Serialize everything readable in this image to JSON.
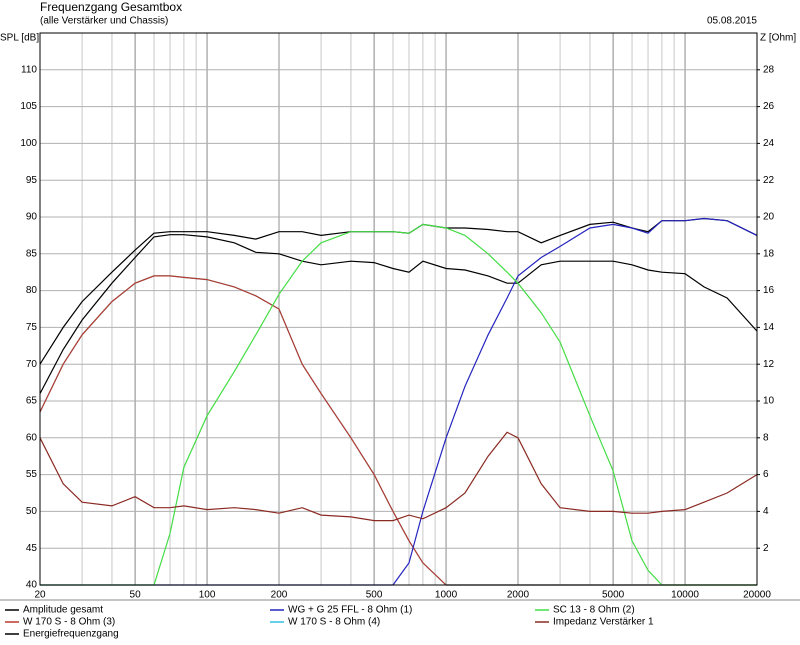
{
  "chart_data": {
    "type": "line",
    "title": "Frequenzgang Gesamtbox",
    "subtitle": "(alle Verstärker und Chassis)",
    "date": "05.08.2015",
    "y_label": "SPL [dB]",
    "y2_label": "Z [Ohm]",
    "log_x": true,
    "grid": true,
    "x": [
      20,
      25,
      30,
      40,
      50,
      60,
      70,
      80,
      100,
      130,
      160,
      200,
      250,
      300,
      400,
      500,
      600,
      700,
      800,
      1000,
      1200,
      1500,
      1800,
      2000,
      2500,
      3000,
      4000,
      5000,
      6000,
      7000,
      8000,
      10000,
      12000,
      15000,
      20000
    ],
    "xlim": [
      20,
      20000
    ],
    "xticks": [
      20,
      50,
      100,
      200,
      500,
      1000,
      2000,
      5000,
      10000,
      20000
    ],
    "ylim": [
      40,
      115
    ],
    "yticks": [
      40,
      45,
      50,
      55,
      60,
      65,
      70,
      75,
      80,
      85,
      90,
      95,
      100,
      105,
      110
    ],
    "y2lim": [
      0,
      30
    ],
    "y2ticks": [
      2,
      4,
      6,
      8,
      10,
      12,
      14,
      16,
      18,
      20,
      22,
      24,
      26,
      28
    ],
    "series": [
      {
        "name": "Amplitude gesamt",
        "color": "#000000",
        "values": [
          70,
          75,
          78.5,
          82.5,
          85.5,
          87.8,
          88,
          88,
          88,
          87.5,
          87,
          88,
          88,
          87.5,
          88,
          88,
          88,
          87.8,
          89,
          88.5,
          88.5,
          88.3,
          88,
          88,
          86.5,
          87.5,
          89,
          89.3,
          88.5,
          88,
          89.5,
          89.5,
          89.8,
          89.5,
          87.5
        ]
      },
      {
        "name": "W 170 S - 8 Ohm (3)",
        "color": "#b83a2e",
        "values": [
          63.5,
          70,
          74,
          78.5,
          81,
          82,
          82,
          81.8,
          81.5,
          80.5,
          79.3,
          77.5,
          70,
          66,
          60,
          55,
          50,
          46,
          43,
          40,
          40,
          40,
          40,
          40,
          40,
          40,
          40,
          40,
          40,
          40,
          40,
          40,
          40,
          40,
          40
        ]
      },
      {
        "name": "Energiefrequenzgang",
        "color": "#000000",
        "values": [
          66,
          72,
          76,
          81,
          84.5,
          87.3,
          87.6,
          87.6,
          87.3,
          86.5,
          85.2,
          85,
          84,
          83.5,
          84,
          83.8,
          83,
          82.5,
          84,
          83,
          82.8,
          82,
          81,
          81,
          83.5,
          84,
          84,
          84,
          83.5,
          82.8,
          82.5,
          82.3,
          80.5,
          79,
          74.5
        ]
      },
      {
        "name": "WG + G 25 FFL - 8 Ohm (1)",
        "color": "#2424c0",
        "values": [
          40,
          40,
          40,
          40,
          40,
          40,
          40,
          40,
          40,
          40,
          40,
          40,
          40,
          40,
          40,
          40,
          40,
          43,
          50,
          60,
          67,
          74,
          79,
          82,
          84.5,
          86,
          88.5,
          89,
          88.5,
          87.8,
          89.5,
          89.5,
          89.8,
          89.5,
          87.5
        ]
      },
      {
        "name": "W 170 S - 8 Ohm (4)",
        "color": "#33c0e0",
        "values": [
          63.5,
          70,
          74,
          78.5,
          81,
          82,
          82,
          81.8,
          81.5,
          80.5,
          79.3,
          77.5,
          70,
          66,
          60,
          55,
          50,
          46,
          43,
          40,
          40,
          40,
          40,
          40,
          40,
          40,
          40,
          40,
          40,
          40,
          40,
          40,
          40,
          40,
          40
        ]
      },
      {
        "name": "SC 13 - 8 Ohm (2)",
        "color": "#44dd44",
        "values": [
          40,
          40,
          40,
          40,
          40,
          40,
          47,
          56,
          63,
          69,
          74,
          79.5,
          84,
          86.5,
          88,
          88,
          88,
          87.8,
          89,
          88.5,
          87.5,
          85,
          82.5,
          81,
          77,
          73,
          63,
          55.5,
          46,
          42,
          40,
          40,
          40,
          40,
          40
        ]
      },
      {
        "name": "Impedanz Verstärker 1",
        "color": "#8b2a22",
        "axis": "y2",
        "values": [
          8,
          5.5,
          4.5,
          4.3,
          4.8,
          4.2,
          4.2,
          4.3,
          4.1,
          4.2,
          4.1,
          3.9,
          4.2,
          3.8,
          3.7,
          3.5,
          3.5,
          3.8,
          3.6,
          4.2,
          5,
          7,
          8.3,
          8,
          5.5,
          4.2,
          4,
          4,
          3.9,
          3.9,
          4,
          4.1,
          4.5,
          5,
          6
        ]
      }
    ]
  }
}
